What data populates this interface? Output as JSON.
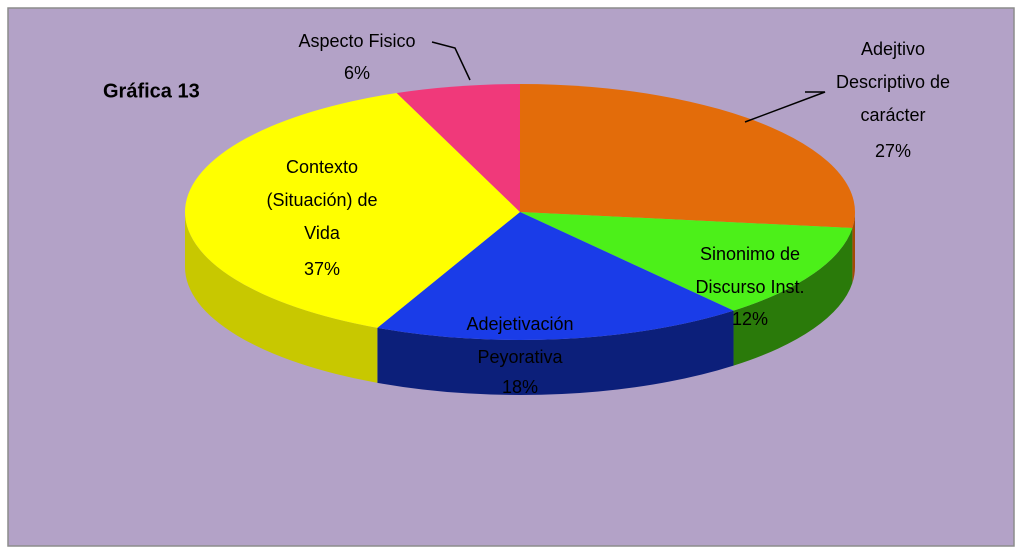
{
  "chart_data": {
    "type": "pie",
    "title": "Gráfica 13",
    "categories": [
      "Adejtivo\nDescriptivo de\ncarácter",
      "Sinonimo de\nDiscurso Inst.",
      "Adejetivación\nPeyorativa",
      "Contexto\n(Situación) de\nVida",
      "Aspecto Fisico"
    ],
    "values": [
      27,
      12,
      18,
      37,
      6
    ],
    "value_labels": [
      "27%",
      "12%",
      "18%",
      "37%",
      "6%"
    ],
    "colors": [
      "#e36c0a",
      "#4cf019",
      "#1a3ce8",
      "#ffff00",
      "#f0397a"
    ],
    "side_colors": [
      "#a34b05",
      "#2a7a0a",
      "#0c1f7a",
      "#c8c800",
      "#a0204f"
    ]
  }
}
